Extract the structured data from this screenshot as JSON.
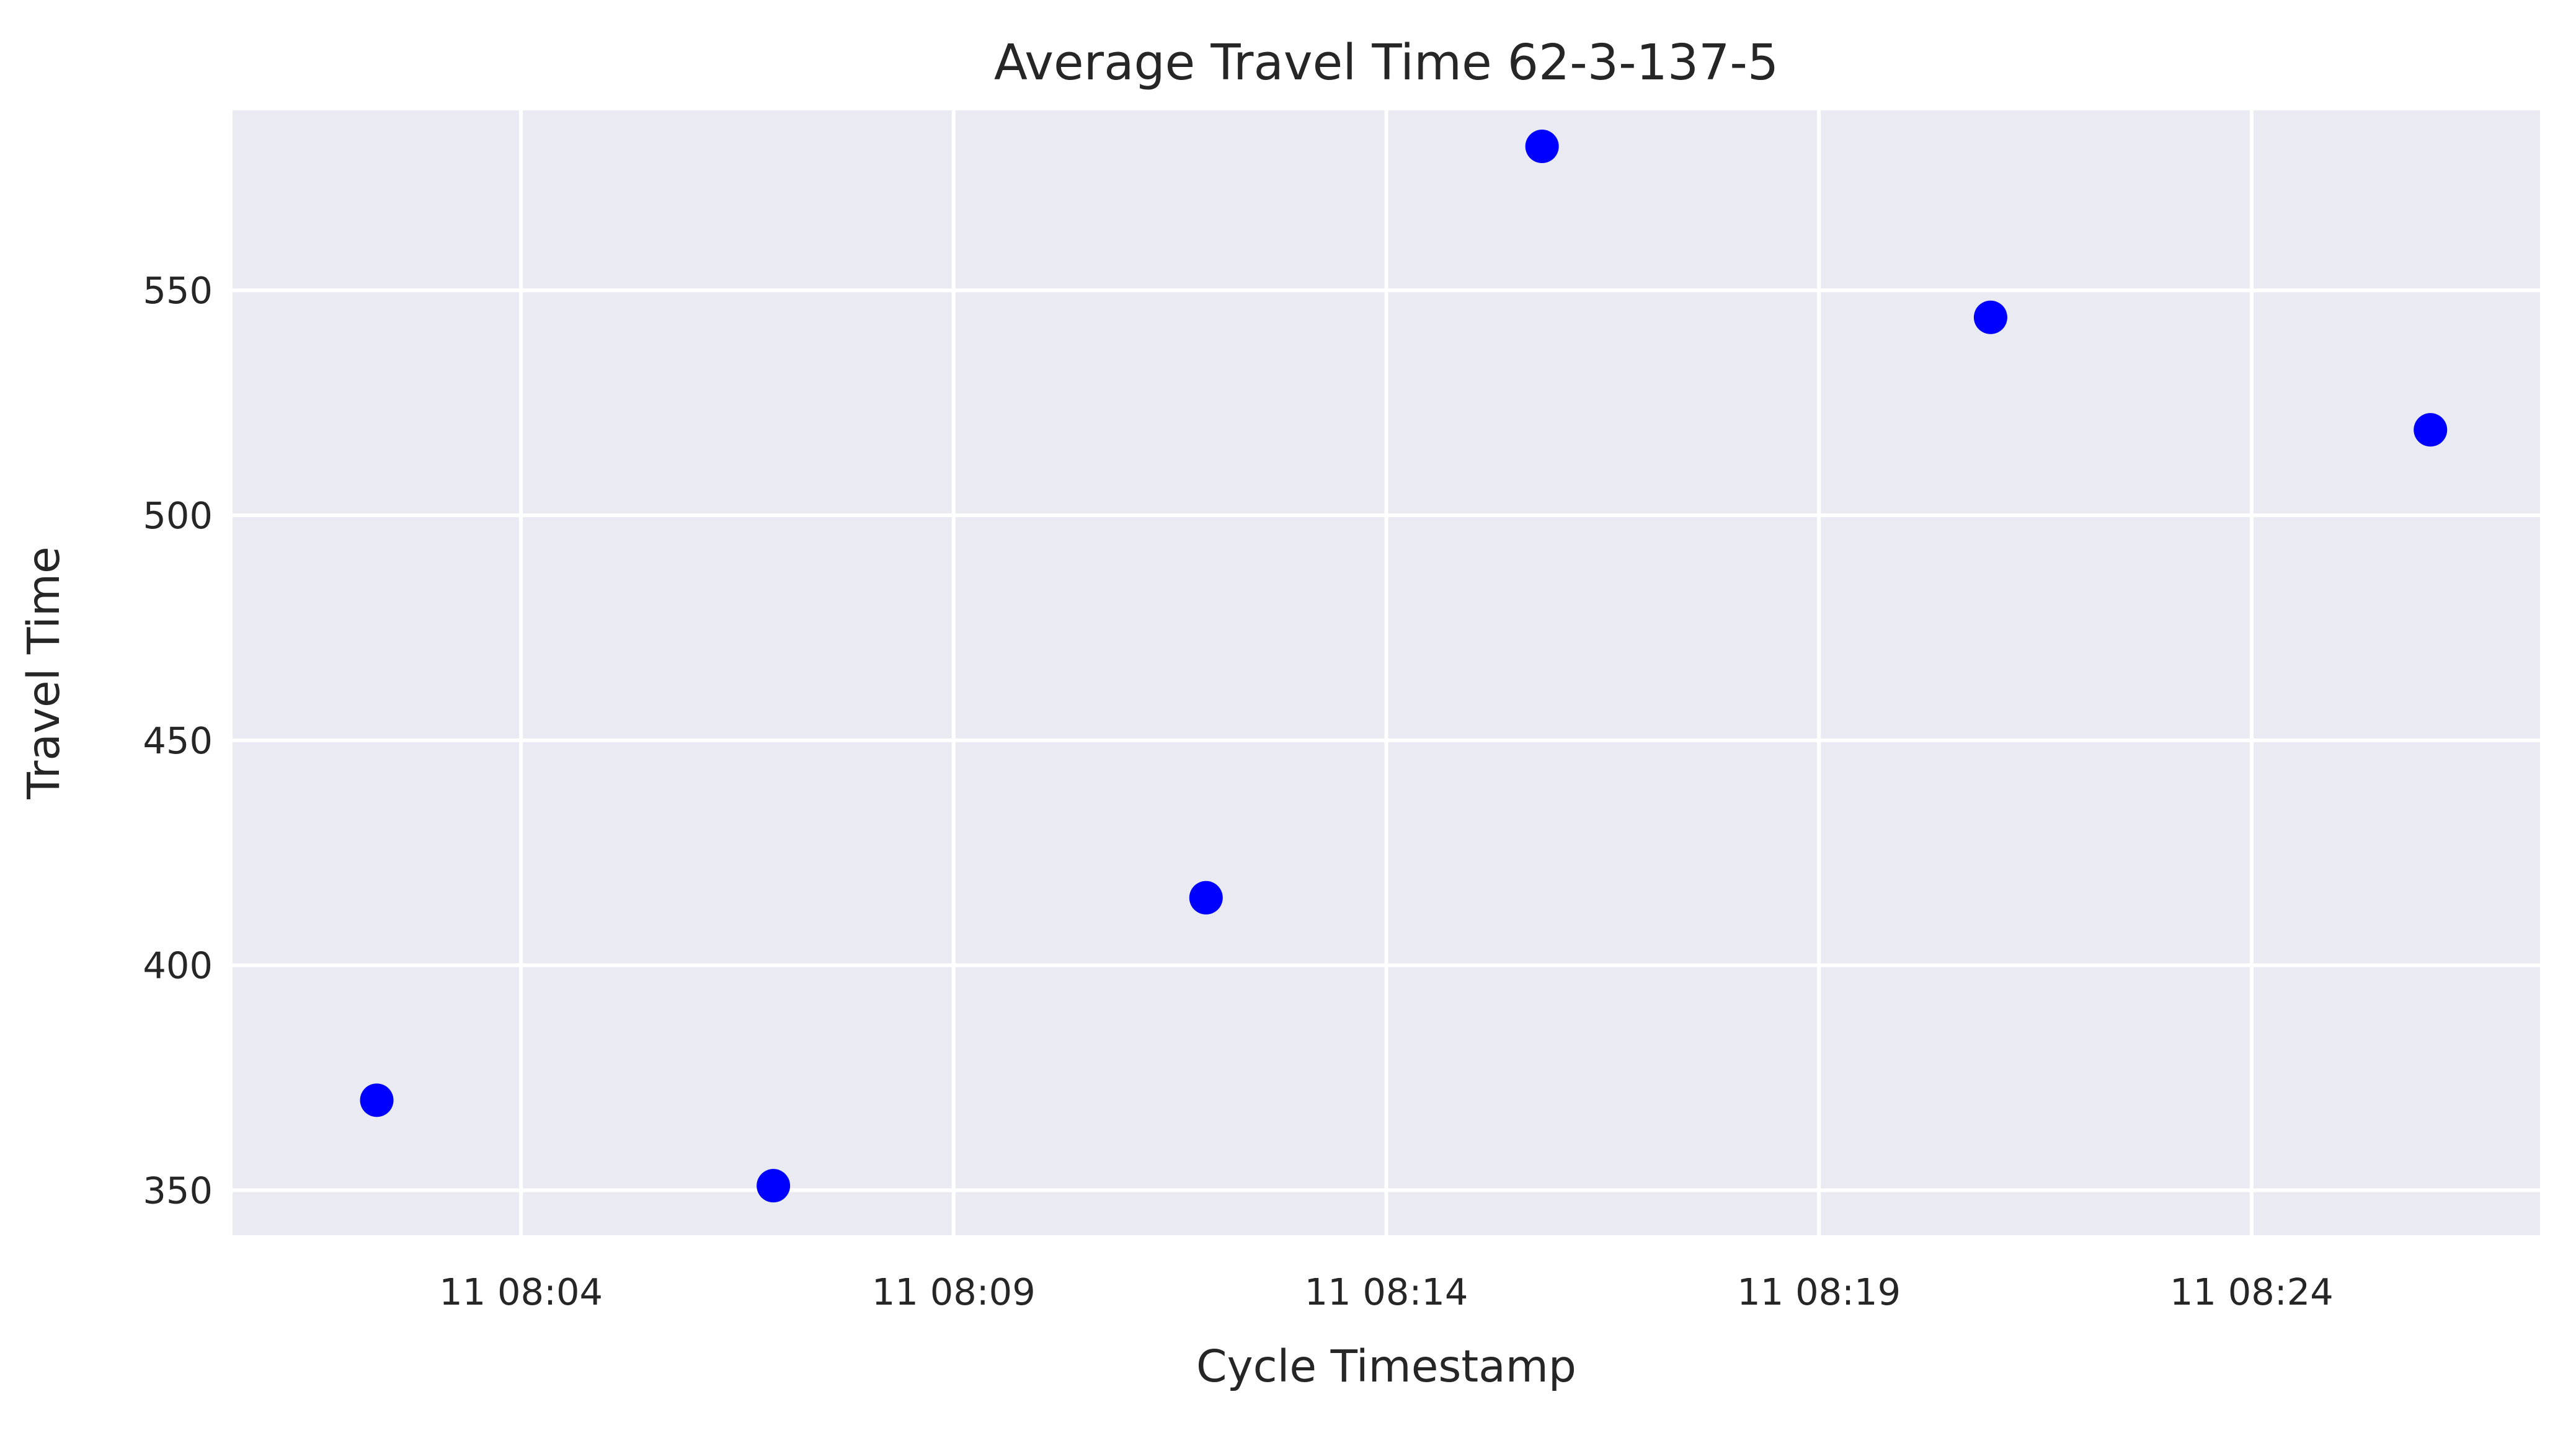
{
  "chart_data": {
    "type": "scatter",
    "title": "Average Travel Time 62-3-137-5",
    "xlabel": "Cycle Timestamp",
    "ylabel": "Travel Time",
    "x_unit": "time (HH:MM)",
    "xlim": [
      "08:00:40",
      "08:27:20"
    ],
    "ylim": [
      340,
      590
    ],
    "x_ticks": [
      "08:04",
      "08:09",
      "08:14",
      "08:19",
      "08:24"
    ],
    "x_tick_labels": [
      "11 08:04",
      "11 08:09",
      "11 08:14",
      "11 08:19",
      "11 08:24"
    ],
    "y_ticks": [
      350,
      400,
      450,
      500,
      550
    ],
    "y_tick_labels": [
      "350",
      "400",
      "450",
      "500",
      "550"
    ],
    "grid": true,
    "background_color": "#eaeaf2",
    "grid_color": "#ffffff",
    "series": [
      {
        "color": "#0000ff",
        "points": [
          {
            "x": "08:02:20",
            "y": 370
          },
          {
            "x": "08:06:55",
            "y": 351
          },
          {
            "x": "08:11:55",
            "y": 415
          },
          {
            "x": "08:15:48",
            "y": 582
          },
          {
            "x": "08:20:59",
            "y": 544
          },
          {
            "x": "08:26:04",
            "y": 519
          }
        ]
      }
    ]
  }
}
